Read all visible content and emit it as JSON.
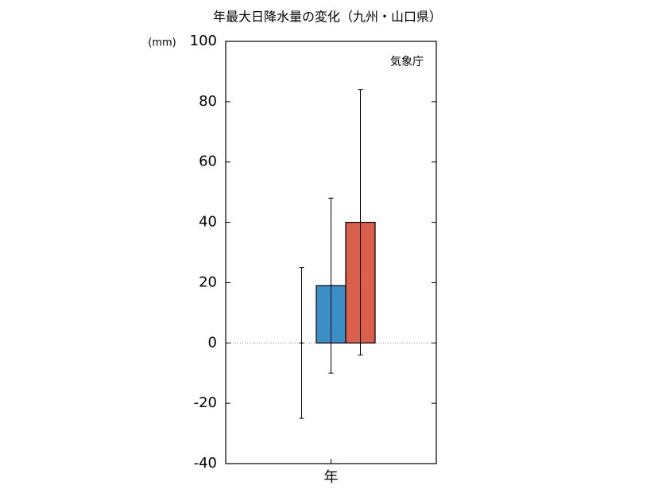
{
  "chart_data": {
    "type": "bar",
    "title": "年最大日降水量の変化（九州・山口県）",
    "y_label": "(mm)",
    "annotation": "気象庁",
    "categories": [
      "年"
    ],
    "series": [
      {
        "values": [
          0
        ],
        "errors": [
          25
        ]
      },
      {
        "color": "#3b8fc6",
        "values": [
          19
        ],
        "errors": [
          29
        ]
      },
      {
        "color": "#d9604a",
        "values": [
          40
        ],
        "errors": [
          44
        ]
      }
    ],
    "ylim": [
      -40,
      100
    ],
    "yticks": [
      -40,
      -20,
      0,
      20,
      40,
      60,
      80,
      100
    ],
    "zero_line": true
  }
}
